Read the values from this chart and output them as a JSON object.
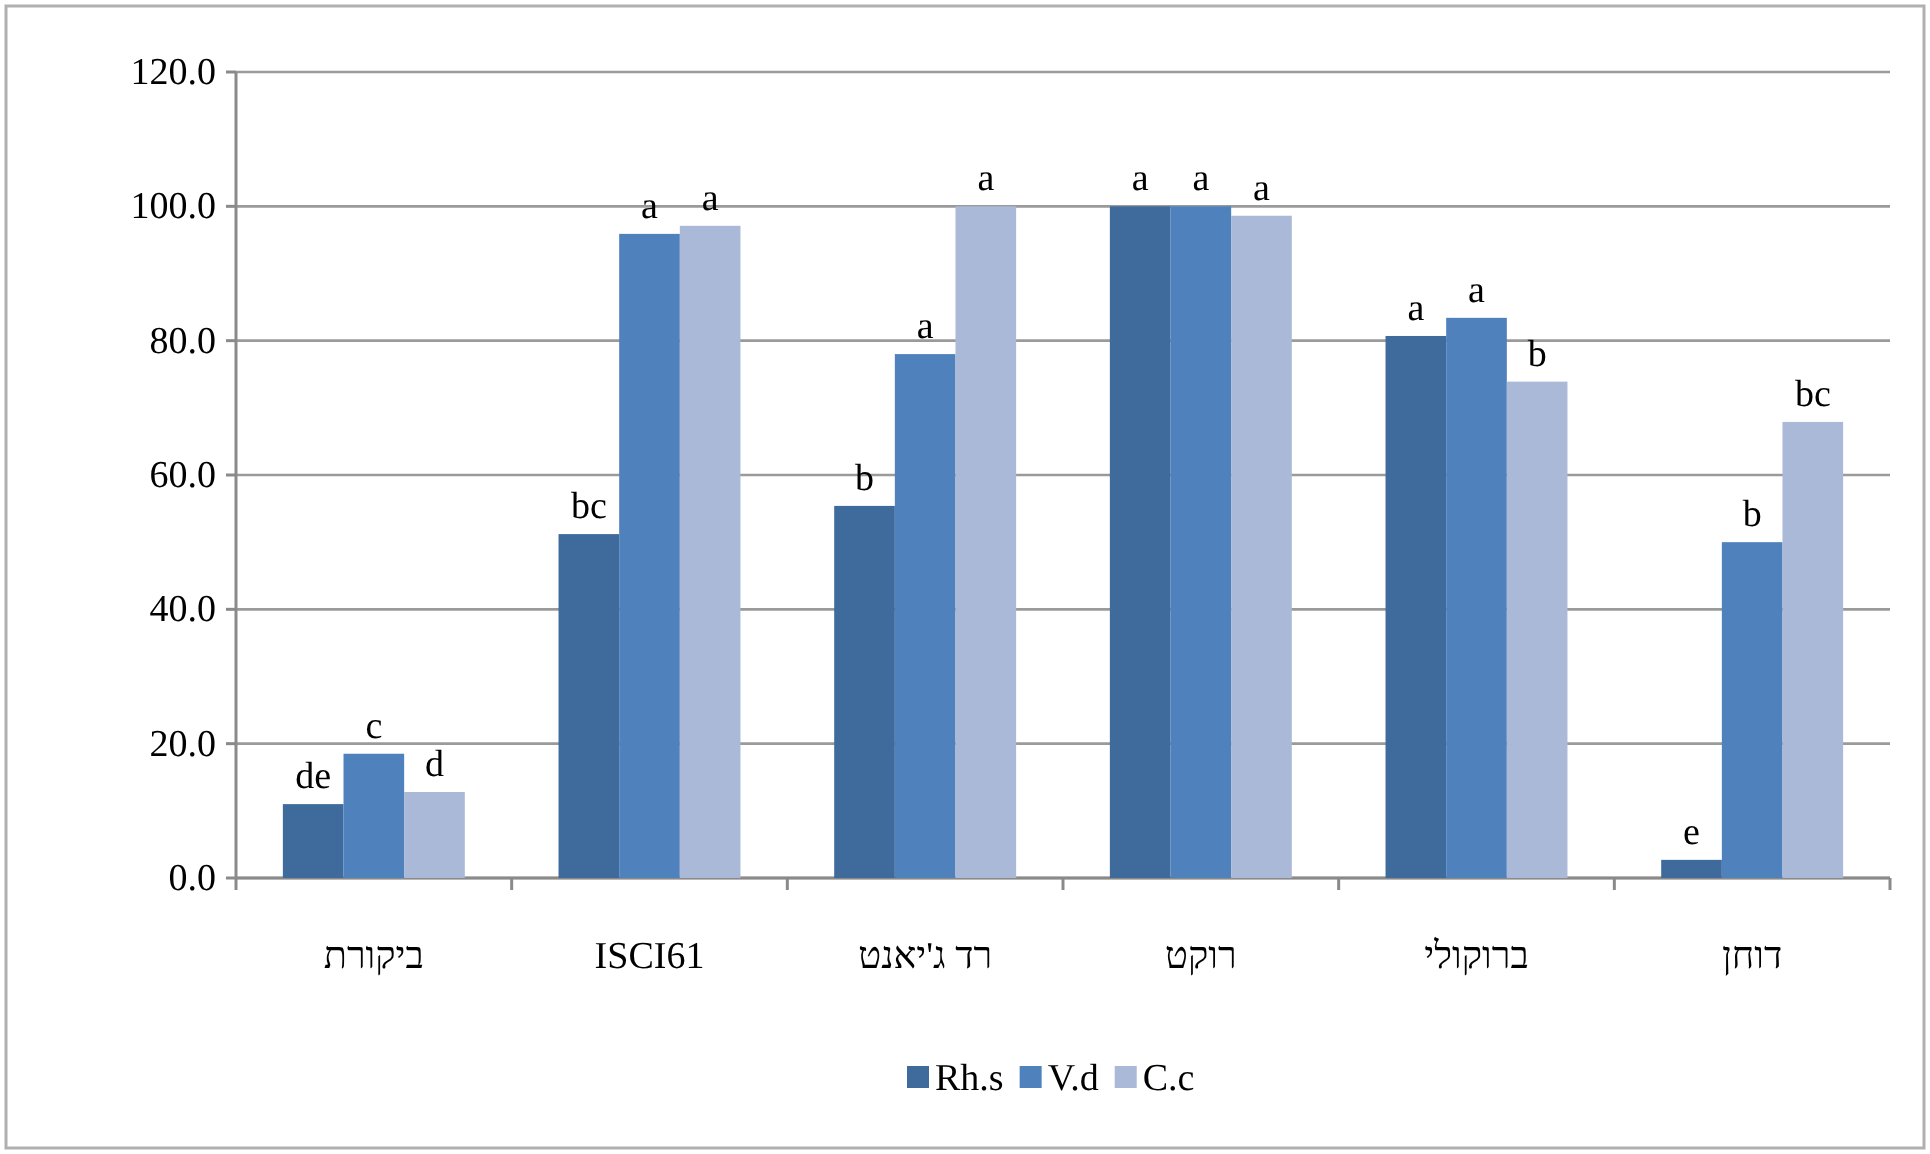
{
  "chart_data": {
    "type": "bar",
    "categories": [
      "ביקורת",
      "ISCI61",
      "רד ג'יאנט",
      "רוקט",
      "ברוקולי",
      "דוחן"
    ],
    "series": [
      {
        "name": "Rh.s",
        "color": "#3f6a9c",
        "values": [
          11.0,
          51.2,
          55.4,
          100.0,
          80.7,
          2.7
        ],
        "value_labels": [
          "de",
          "bc",
          "b",
          "a",
          "a",
          "e"
        ]
      },
      {
        "name": "V.d",
        "color": "#4f81bd",
        "values": [
          18.5,
          95.9,
          78.0,
          100.0,
          83.4,
          50.0
        ],
        "value_labels": [
          "c",
          "a",
          "a",
          "a",
          "a",
          "b"
        ]
      },
      {
        "name": "C.c",
        "color": "#aab9d7",
        "values": [
          12.8,
          97.1,
          100.0,
          98.6,
          73.9,
          67.9
        ],
        "value_labels": [
          "d",
          "a",
          "a",
          "a",
          "b",
          "bc"
        ]
      }
    ],
    "ylim": [
      0,
      120
    ],
    "yticks": [
      {
        "value": 0,
        "label": "0.0"
      },
      {
        "value": 20,
        "label": "20.0"
      },
      {
        "value": 40,
        "label": "40.0"
      },
      {
        "value": 60,
        "label": "60.0"
      },
      {
        "value": 80,
        "label": "80.0"
      },
      {
        "value": 100,
        "label": "100.0"
      },
      {
        "value": 120,
        "label": "120.0"
      }
    ],
    "grid": "y",
    "legend": "bottom"
  }
}
